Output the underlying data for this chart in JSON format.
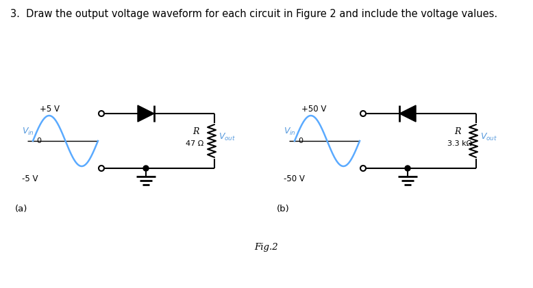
{
  "title": "3.  Draw the output voltage waveform for each circuit in Figure 2 and include the voltage values.",
  "title_fontsize": 10.5,
  "fig_width": 7.78,
  "fig_height": 4.21,
  "bg_color": "#ffffff",
  "circuit_a": {
    "label": "(a)",
    "pos_voltage": "+5 V",
    "neg_voltage": "-5 V",
    "resistor_label": "R",
    "resistor_value": "47 Ω",
    "diode_forward": true,
    "vin_label": "V",
    "vin_sub": "in",
    "vout_label": "V",
    "vout_sub": "out",
    "sine_color": "#5aaaff",
    "signal_zero_label": "0"
  },
  "circuit_b": {
    "label": "(b)",
    "pos_voltage": "+50 V",
    "neg_voltage": "-50 V",
    "resistor_label": "R",
    "resistor_value": "3.3 kΩ",
    "diode_forward": false,
    "vin_label": "V",
    "vin_sub": "in",
    "vout_label": "V",
    "vout_sub": "out",
    "sine_color": "#5aaaff",
    "signal_zero_label": "0"
  },
  "fig2_label": "Fig.2",
  "line_color": "#000000",
  "text_color": "#000000",
  "blue_color": "#5599dd"
}
